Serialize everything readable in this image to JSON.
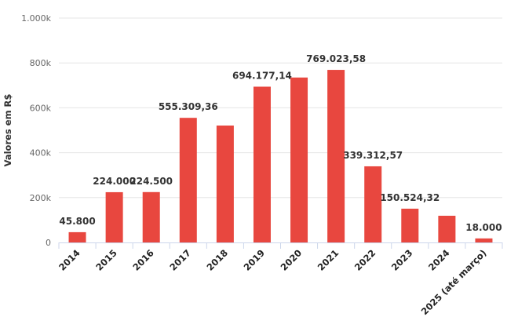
{
  "chart_data": {
    "type": "bar",
    "y_axis_label": "Valores em R$",
    "categories": [
      "2014",
      "2015",
      "2016",
      "2017",
      "2018",
      "2019",
      "2020",
      "2021",
      "2022",
      "2023",
      "2024",
      "2025 (até março)"
    ],
    "values": [
      45800,
      224000,
      224500,
      555309.36,
      521000,
      694177.14,
      735000,
      769023.58,
      339312.57,
      150524.32,
      119000,
      18000
    ],
    "value_labels": [
      "45.800",
      "224.000",
      "224.500",
      "555.309,36",
      null,
      "694.177,14",
      null,
      "769.023,58",
      "339.312,57",
      "150.524,32",
      null,
      "18.000"
    ],
    "color": "#e8473f",
    "ylim": [
      0,
      1000000
    ],
    "yticks": [
      0,
      {
        "value": 200000,
        "label": "200k"
      },
      {
        "value": 400000,
        "label": "400k"
      },
      {
        "value": 600000,
        "label": "600k"
      },
      {
        "value": 800000,
        "label": "800k"
      },
      {
        "value": 1000000,
        "label": "1.000k"
      }
    ],
    "grid": true
  }
}
